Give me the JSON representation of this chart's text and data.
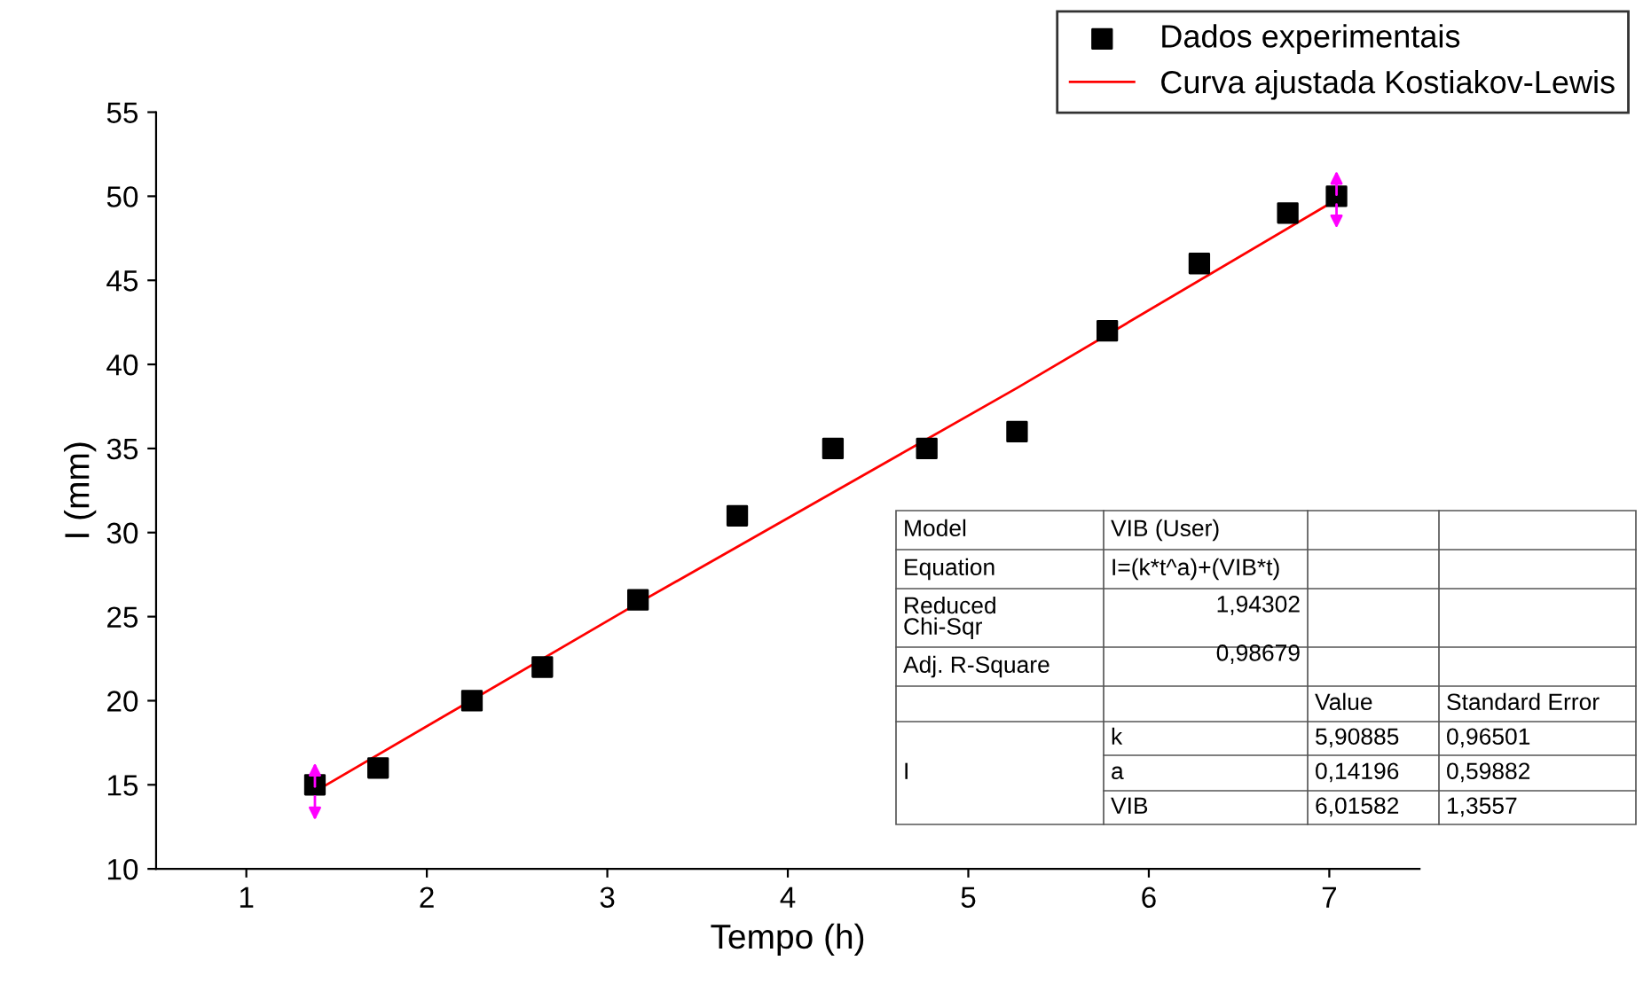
{
  "chart_data": {
    "type": "scatter",
    "xlabel": "Tempo (h)",
    "ylabel": "I (mm)",
    "xlim": [
      0.5,
      7.5
    ],
    "xticks": [
      1,
      2,
      3,
      4,
      5,
      6,
      7
    ],
    "ylim": [
      10,
      55
    ],
    "yticks": [
      10,
      15,
      20,
      25,
      30,
      35,
      40,
      45,
      50,
      55
    ],
    "grid": false,
    "legend": "top right",
    "series": [
      {
        "name": "Dados experimentais",
        "marker": "square",
        "color": "#000000",
        "x": [
          1.38,
          1.73,
          2.25,
          2.64,
          3.17,
          3.72,
          4.25,
          4.77,
          5.27,
          5.77,
          6.28,
          6.77,
          7.04
        ],
        "values": [
          15,
          16,
          20,
          22,
          26,
          31,
          35,
          35,
          36,
          42,
          46,
          49,
          50
        ]
      },
      {
        "name": "Curva ajustada Kostiakov-Lewis",
        "type": "line",
        "color": "#ff0000",
        "x": [
          1.38,
          3.17,
          5.27,
          7.04
        ],
        "values": [
          14.6,
          25.8,
          38.6,
          49.8
        ]
      }
    ],
    "annotations": [
      "Model",
      "VIB (User)",
      "Equation",
      "I=(k*t^a)+(VIB*t)",
      "Reduced\nChi-Sqr",
      "1,94302",
      "Adj. R-Square",
      "0,98679",
      "Value",
      "Standard Error",
      "k",
      "5,90885",
      "0,96501",
      "I",
      "a",
      "0,14196",
      "0,59882",
      "VIB",
      "6,01582",
      "1,3557"
    ]
  }
}
